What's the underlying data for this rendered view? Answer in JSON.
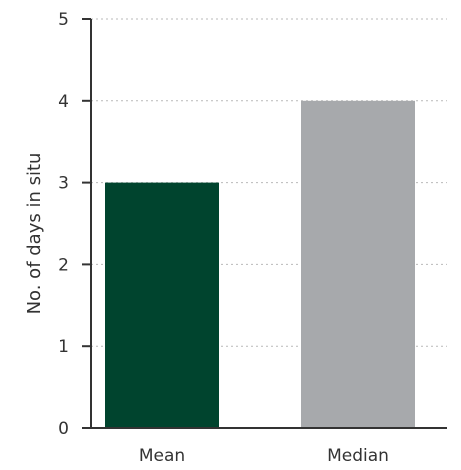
{
  "chart_data": {
    "type": "bar",
    "categories": [
      "Mean",
      "Median"
    ],
    "values": [
      3,
      4
    ],
    "colors": [
      "#00442e",
      "#a7a9ac"
    ],
    "ylabel": "No. of days in situ",
    "xlabel": "",
    "ylim": [
      0,
      5
    ],
    "yticks": [
      "0",
      "1",
      "2",
      "3",
      "4",
      "5"
    ],
    "grid": "dotted horizontal"
  }
}
